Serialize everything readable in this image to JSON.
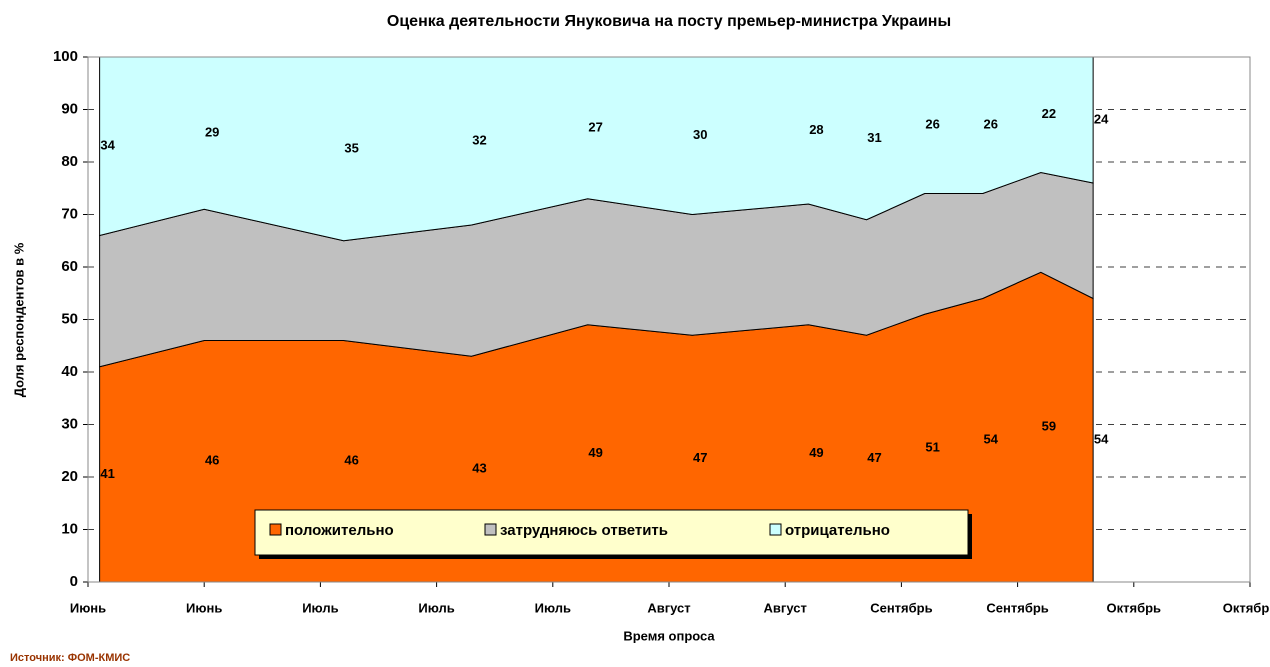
{
  "chart_data": {
    "type": "stacked_area",
    "title": "Оценка деятельности Януковича на посту премьер-министра Украины",
    "x_label": "Время опроса",
    "y_label": "Доля респондентов в %",
    "source": "Источник: ФОМ-КМИС",
    "x": [
      0.1,
      1,
      2.2,
      3.3,
      4.3,
      5.2,
      6.2,
      6.7,
      7.2,
      7.7,
      8.2,
      8.65
    ],
    "series": [
      {
        "name": "положительно",
        "color": "#ff6600",
        "values": [
          41,
          46,
          46,
          43,
          49,
          47,
          49,
          47,
          51,
          54,
          59,
          54
        ]
      },
      {
        "name": "затрудняюсь ответить",
        "color": "#c0c0c0",
        "values": [
          25,
          25,
          19,
          25,
          24,
          23,
          23,
          22,
          23,
          20,
          19,
          22
        ]
      },
      {
        "name": "отрицательно",
        "color": "#ccffff",
        "values": [
          34,
          29,
          35,
          32,
          27,
          30,
          28,
          31,
          26,
          26,
          22,
          24
        ]
      }
    ],
    "labeled_series": [
      0,
      2
    ],
    "xlim": [
      0,
      10
    ],
    "xticks": [
      {
        "value": 0,
        "label": "Июнь"
      },
      {
        "value": 1,
        "label": "Июнь"
      },
      {
        "value": 2,
        "label": "Июль"
      },
      {
        "value": 3,
        "label": "Июль"
      },
      {
        "value": 4,
        "label": "Июль"
      },
      {
        "value": 5,
        "label": "Август"
      },
      {
        "value": 6,
        "label": "Август"
      },
      {
        "value": 7,
        "label": "Сентябрь"
      },
      {
        "value": 8,
        "label": "Сентябрь"
      },
      {
        "value": 9,
        "label": "Октябрь"
      },
      {
        "value": 10,
        "label": "Октябрь"
      }
    ],
    "ylim": [
      0,
      100
    ],
    "yticks": [
      0,
      10,
      20,
      30,
      40,
      50,
      60,
      70,
      80,
      90,
      100
    ],
    "grid": true,
    "legend": "bottom"
  }
}
